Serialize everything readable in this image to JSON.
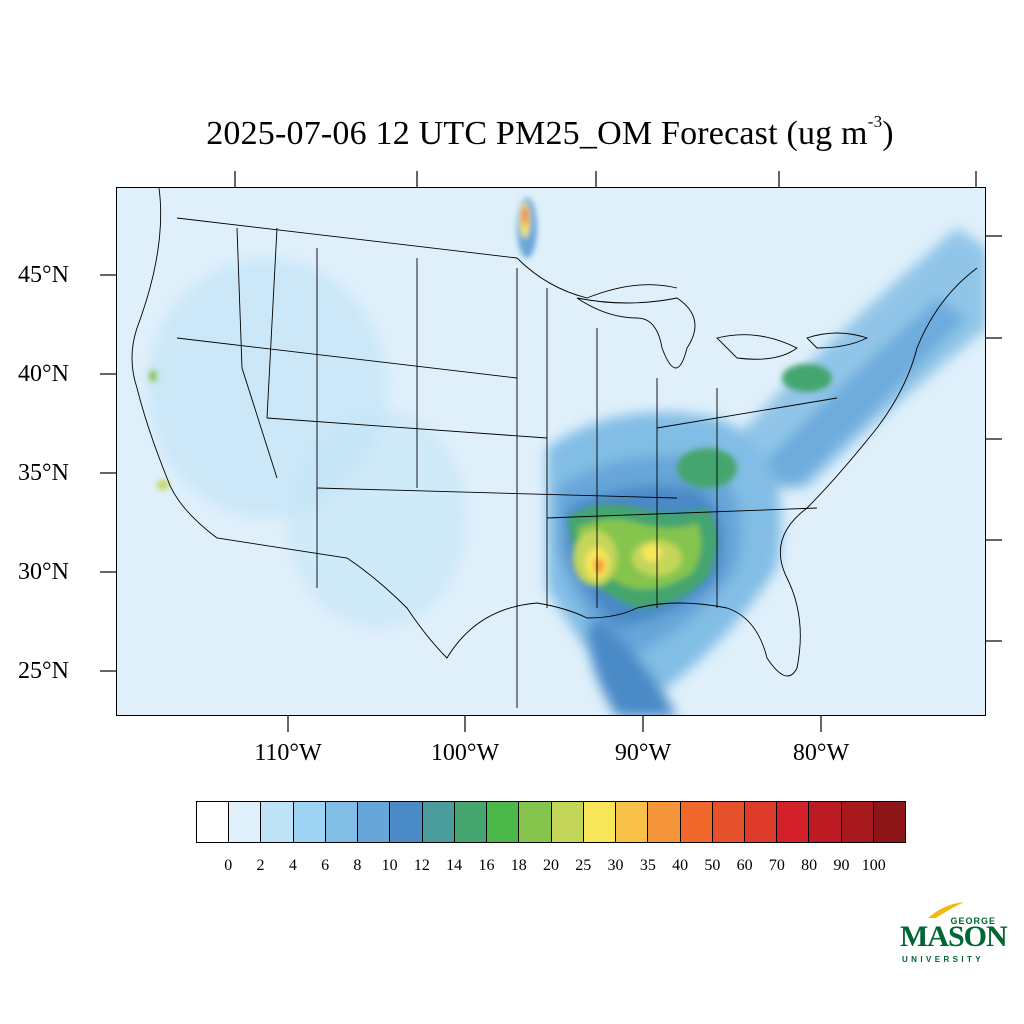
{
  "title": {
    "text": "2025-07-06 12 UTC PM25_OM Forecast (ug m",
    "superscript": "-3",
    "close": ")"
  },
  "map": {
    "region": "Contiguous United States",
    "lat_labels": [
      "45°N",
      "40°N",
      "35°N",
      "30°N",
      "25°N"
    ],
    "lon_labels": [
      "110°W",
      "100°W",
      "90°W",
      "80°W"
    ]
  },
  "colorbar": {
    "tick_labels": [
      "0",
      "2",
      "4",
      "6",
      "8",
      "10",
      "12",
      "14",
      "16",
      "18",
      "20",
      "25",
      "30",
      "35",
      "40",
      "50",
      "60",
      "70",
      "80",
      "90",
      "100"
    ],
    "colors": [
      "#ffffff",
      "#dff0fb",
      "#bfe3f6",
      "#9fd3f2",
      "#82bde5",
      "#67a6d9",
      "#4a8ac7",
      "#4a9b9b",
      "#45a56e",
      "#4cb84a",
      "#85c54d",
      "#c3d65a",
      "#f7e65a",
      "#f8c24a",
      "#f6963c",
      "#f1682c",
      "#e6502b",
      "#df3b2a",
      "#d32029",
      "#bb1b22",
      "#a8191d",
      "#8e1517"
    ]
  },
  "logo": {
    "line1": "GEORGE",
    "line2": "MASON",
    "line3": "UNIVERSITY",
    "color": "#006633"
  }
}
